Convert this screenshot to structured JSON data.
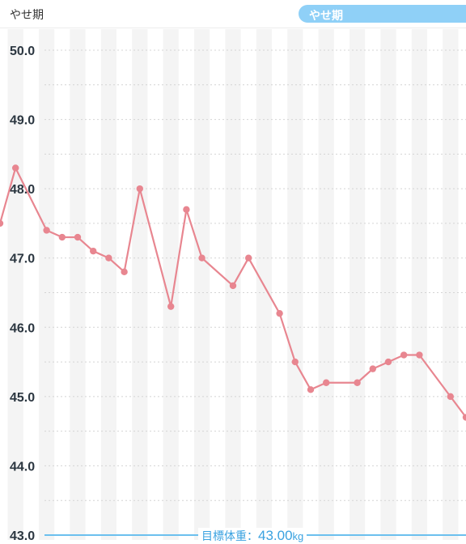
{
  "header": {
    "left_label": "やせ期",
    "pill_label": "やせ期"
  },
  "goal": {
    "prefix": "目標体重：",
    "value": "43.00",
    "unit": "kg",
    "weight": 43.0
  },
  "colors": {
    "line": "#e88690",
    "goal_line": "#6cc0ee",
    "goal_text": "#3aa2e0",
    "stripe": "#f4f4f4",
    "grid": "#d4d4d4",
    "pill": "#8fd0f7"
  },
  "chart_data": {
    "type": "line",
    "title": "",
    "xlabel": "",
    "ylabel": "",
    "ylim": [
      43.0,
      50.0
    ],
    "y_ticks": [
      "43.0",
      "44.0",
      "45.0",
      "46.0",
      "47.0",
      "48.0",
      "49.0",
      "50.0"
    ],
    "grid": true,
    "series": [
      {
        "points": [
          {
            "x": 0,
            "y": 47.5
          },
          {
            "x": 1,
            "y": 48.3
          },
          {
            "x": 3,
            "y": 47.4
          },
          {
            "x": 4,
            "y": 47.3
          },
          {
            "x": 5,
            "y": 47.3
          },
          {
            "x": 6,
            "y": 47.1
          },
          {
            "x": 7,
            "y": 47.0
          },
          {
            "x": 8,
            "y": 46.8
          },
          {
            "x": 9,
            "y": 48.0
          },
          {
            "x": 11,
            "y": 46.3
          },
          {
            "x": 12,
            "y": 47.7
          },
          {
            "x": 13,
            "y": 47.0
          },
          {
            "x": 15,
            "y": 46.6
          },
          {
            "x": 16,
            "y": 47.0
          },
          {
            "x": 18,
            "y": 46.2
          },
          {
            "x": 19,
            "y": 45.5
          },
          {
            "x": 20,
            "y": 45.1
          },
          {
            "x": 21,
            "y": 45.2
          },
          {
            "x": 23,
            "y": 45.2
          },
          {
            "x": 24,
            "y": 45.4
          },
          {
            "x": 25,
            "y": 45.5
          },
          {
            "x": 26,
            "y": 45.6
          },
          {
            "x": 27,
            "y": 45.6
          },
          {
            "x": 29,
            "y": 45.0
          },
          {
            "x": 30,
            "y": 44.7
          }
        ]
      }
    ]
  }
}
